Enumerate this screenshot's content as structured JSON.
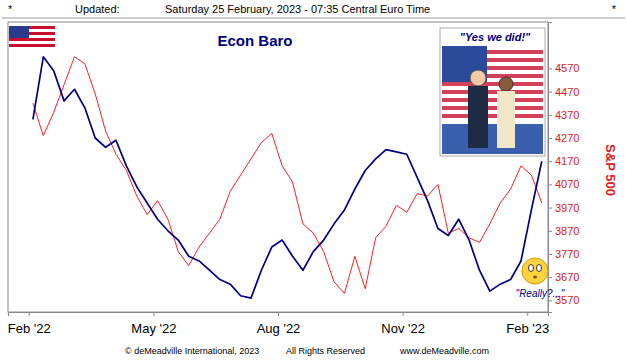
{
  "chart_data": {
    "type": "line",
    "header": [
      "*",
      "Updated:",
      "Saturday 25 February, 2023 - 07:35 Central Euro Time",
      "*"
    ],
    "footer": [
      "© deMeadville International, 2023",
      "All Rights Reserved",
      "www.deMeadville.com"
    ],
    "annotations": [
      "\"Yes we did!\"",
      "\"Really?...\""
    ],
    "x": [
      0.1,
      0.35,
      0.6,
      0.85,
      1.1,
      1.35,
      1.6,
      1.85,
      2.1,
      2.35,
      2.6,
      2.85,
      3.1,
      3.35,
      3.6,
      3.85,
      4.1,
      4.35,
      4.6,
      4.85,
      5.1,
      5.35,
      5.6,
      5.85,
      6.1,
      6.35,
      6.6,
      6.85,
      7.1,
      7.35,
      7.6,
      7.85,
      8.1,
      8.35,
      8.6,
      8.85,
      9.1,
      9.35,
      9.6,
      9.85,
      10.1,
      10.35,
      10.6,
      10.85,
      11.1,
      11.35,
      11.6,
      11.85,
      12.1,
      12.35
    ],
    "xlim": [
      -0.5,
      12.5
    ],
    "xticks": [
      {
        "value": 0,
        "label": "Feb '22"
      },
      {
        "value": 3,
        "label": "May '22"
      },
      {
        "value": 6,
        "label": "Aug '22"
      },
      {
        "value": 9,
        "label": "Nov '22"
      },
      {
        "value": 12,
        "label": "Feb '23"
      }
    ],
    "ylim": [
      3520,
      4770
    ],
    "yticks": [
      3570,
      3670,
      3770,
      3870,
      3970,
      4070,
      4170,
      4270,
      4370,
      4470,
      4570
    ],
    "grid": false,
    "series": [
      {
        "name": "S&P 500",
        "color": "#ff2020",
        "values": [
          4420,
          4280,
          4380,
          4500,
          4620,
          4590,
          4460,
          4300,
          4200,
          4130,
          4020,
          3940,
          4000,
          3920,
          3780,
          3720,
          3800,
          3860,
          3920,
          4040,
          4110,
          4180,
          4250,
          4290,
          4150,
          4080,
          3900,
          3860,
          3780,
          3650,
          3600,
          3760,
          3620,
          3840,
          3890,
          3980,
          3950,
          4030,
          4020,
          4070,
          3860,
          3880,
          3840,
          3820,
          3900,
          3990,
          4050,
          4150,
          4110,
          3990
        ]
      },
      {
        "name": "Econ Baro",
        "color": "#000080",
        "values": [
          4350,
          4620,
          4560,
          4430,
          4480,
          4400,
          4270,
          4230,
          4260,
          4150,
          4060,
          3990,
          3920,
          3870,
          3830,
          3760,
          3740,
          3700,
          3660,
          3640,
          3590,
          3580,
          3700,
          3800,
          3830,
          3760,
          3700,
          3780,
          3830,
          3900,
          3960,
          4050,
          4130,
          4180,
          4220,
          4210,
          4200,
          4100,
          4000,
          3880,
          3850,
          3920,
          3830,
          3700,
          3610,
          3640,
          3660,
          3740,
          3960,
          4170
        ]
      }
    ]
  }
}
